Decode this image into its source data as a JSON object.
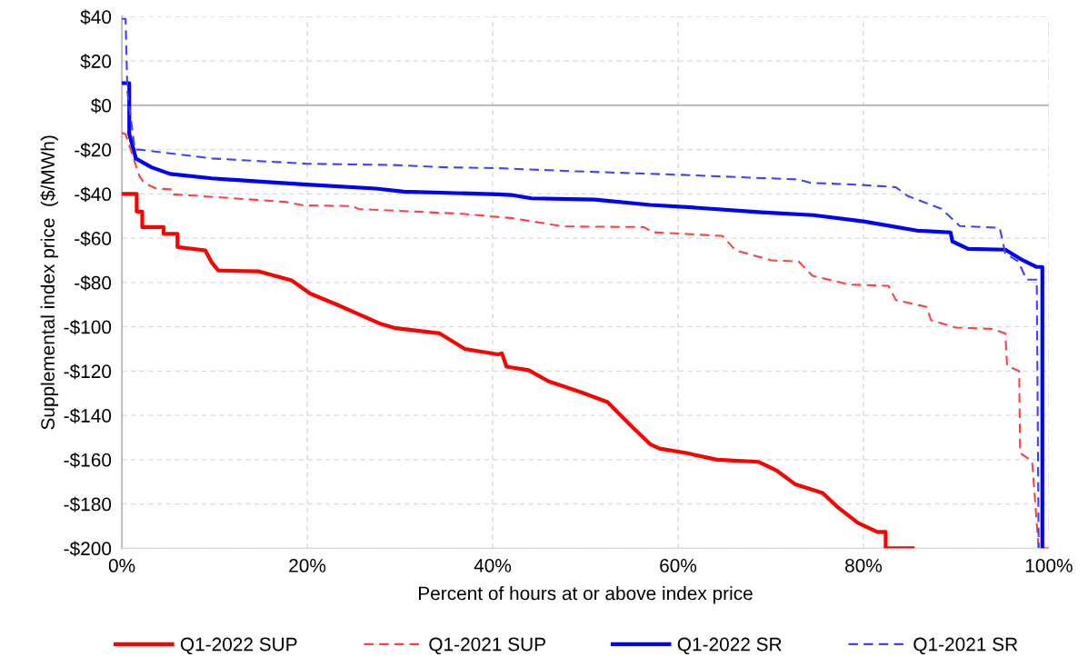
{
  "chart_data": {
    "type": "line",
    "xlabel": "Percent of hours at or above index price",
    "ylabel": "Supplemental index price  ($/MWh)",
    "xlim": [
      0,
      100
    ],
    "ylim": [
      -200,
      40
    ],
    "xticks": [
      {
        "value": 0,
        "label": "0%"
      },
      {
        "value": 20,
        "label": "20%"
      },
      {
        "value": 40,
        "label": "40%"
      },
      {
        "value": 60,
        "label": "60%"
      },
      {
        "value": 80,
        "label": "80%"
      },
      {
        "value": 100,
        "label": "100%"
      }
    ],
    "yticks": [
      {
        "value": -200,
        "label": "-$200"
      },
      {
        "value": -180,
        "label": "-$180"
      },
      {
        "value": -160,
        "label": "-$160"
      },
      {
        "value": -140,
        "label": "-$140"
      },
      {
        "value": -120,
        "label": "-$120"
      },
      {
        "value": -100,
        "label": "-$100"
      },
      {
        "value": -80,
        "label": "-$80"
      },
      {
        "value": -60,
        "label": "-$60"
      },
      {
        "value": -40,
        "label": "-$40"
      },
      {
        "value": -20,
        "label": "-$20"
      },
      {
        "value": 0,
        "label": "$0"
      },
      {
        "value": 20,
        "label": "$20"
      },
      {
        "value": 40,
        "label": "$40"
      }
    ],
    "grid": true,
    "legend": "bottom",
    "ref_lines": [
      {
        "axis": "y",
        "value": 0,
        "color": "#bfbfbf",
        "line_style": "solid"
      }
    ],
    "series": [
      {
        "name": "Q1-2022 SUP",
        "color": "#ff0000",
        "line_style": "solid",
        "x": [
          0,
          1.6,
          1.6,
          2.2,
          2.2,
          4.5,
          4.5,
          6,
          6,
          9,
          9.7,
          10.4,
          14.8,
          18.3,
          20.3,
          23.2,
          25.9,
          27.8,
          29.4,
          34.3,
          37,
          40.6,
          41,
          41.5,
          43.9,
          46,
          49.5,
          52.4,
          55,
          57,
          58,
          60.9,
          64.2,
          68.7,
          70.6,
          72.6,
          75.6,
          77.1,
          79.4,
          81.5,
          82.4,
          82.4,
          85.3
        ],
        "values": [
          -40,
          -40,
          -48,
          -48,
          -55,
          -55,
          -58,
          -58,
          -64,
          -65.5,
          -71,
          -74.6,
          -75,
          -79,
          -85,
          -90,
          -95,
          -98.5,
          -100.5,
          -103,
          -110,
          -112.5,
          -112,
          -118,
          -119.6,
          -124.6,
          -129.5,
          -134,
          -145,
          -153,
          -155,
          -157,
          -160,
          -161,
          -164.8,
          -171,
          -175,
          -181,
          -188.5,
          -192.6,
          -192.6,
          -200,
          -200
        ]
      },
      {
        "name": "Q1-2021 SUP",
        "color": "#ff4040",
        "line_style": "dashed",
        "x": [
          0,
          0.4,
          1.9,
          2.4,
          3.7,
          5.5,
          5.6,
          10.7,
          17.6,
          19.6,
          24.9,
          25.5,
          36.7,
          42.2,
          47.6,
          56.3,
          57.3,
          64.8,
          66.2,
          70.1,
          73,
          74.5,
          78.6,
          82.7,
          83.5,
          86.8,
          87.3,
          90,
          94,
          95.3,
          95.5,
          96.8,
          96.9,
          98.2,
          98.9,
          100
        ],
        "values": [
          -12.5,
          -13,
          -32,
          -35,
          -37.6,
          -38,
          -40.2,
          -41.6,
          -43.6,
          -45.2,
          -45.5,
          -46.8,
          -49,
          -51,
          -54.7,
          -55,
          -57.3,
          -59,
          -65.5,
          -70,
          -70.5,
          -77,
          -81,
          -81.5,
          -88,
          -91,
          -97,
          -100.4,
          -101,
          -103,
          -117.6,
          -120,
          -157,
          -160.7,
          -200,
          -200
        ]
      },
      {
        "name": "Q1-2022 SR",
        "color": "#0000ff",
        "line_style": "solid",
        "x": [
          0,
          0.8,
          0.8,
          1.3,
          1.5,
          3.2,
          5.2,
          9.7,
          15,
          20,
          27.4,
          30.4,
          40.6,
          42,
          44.2,
          51,
          57,
          62.2,
          69,
          74.6,
          80,
          85.8,
          89.4,
          89.6,
          91.3,
          95.3,
          97.2,
          98.7,
          99.3,
          99.3
        ],
        "values": [
          10,
          10,
          -13,
          -20.5,
          -24,
          -28,
          -31,
          -33,
          -34.5,
          -35.8,
          -37.6,
          -39,
          -40.2,
          -40.5,
          -42,
          -42.6,
          -45,
          -46.3,
          -48.3,
          -49.6,
          -52.4,
          -56.6,
          -57.4,
          -61.5,
          -64.8,
          -65.2,
          -70,
          -73,
          -73,
          -200
        ]
      },
      {
        "name": "Q1-2021 SR",
        "color": "#4040ff",
        "line_style": "dashed",
        "x": [
          0,
          0.4,
          0.6,
          1.4,
          1.9,
          9.7,
          20,
          29.4,
          35,
          40.6,
          49,
          60.3,
          73,
          74.3,
          80,
          83.5,
          84.8,
          88.4,
          90.4,
          94.7,
          95.3,
          96.7,
          97.6,
          98.7,
          98.9
        ],
        "values": [
          39,
          39,
          6,
          -20,
          -20,
          -24,
          -26.4,
          -27,
          -28,
          -28.4,
          -29.8,
          -31.4,
          -33.5,
          -35,
          -36,
          -37,
          -41,
          -46.7,
          -54.5,
          -55.3,
          -66.8,
          -70.5,
          -78.7,
          -78.7,
          -200
        ]
      }
    ]
  }
}
